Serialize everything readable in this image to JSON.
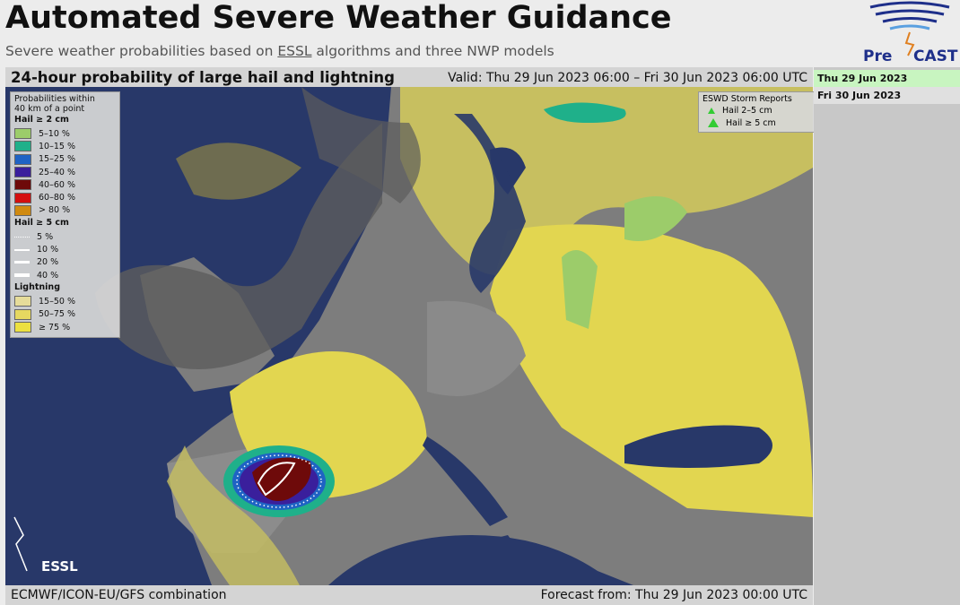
{
  "header": {
    "title": "Automated Severe Weather Guidance",
    "subtitle_before": "Severe weather probabilities based on ",
    "subtitle_link": "ESSL",
    "subtitle_after": " algorithms and three NWP models"
  },
  "logo": {
    "left": "Pre",
    "right": "CAST"
  },
  "map": {
    "title": "24-hour probability of large hail and lightning",
    "valid": "Valid: Thu 29 Jun 2023 06:00 – Fri 30 Jun 2023 06:00 UTC",
    "essl_logo": "ESSL",
    "footer_left": "ECMWF/ICON-EU/GFS combination",
    "footer_right": "Forecast from: Thu 29 Jun 2023 00:00 UTC"
  },
  "legend": {
    "title_lines": [
      "Probabilities within",
      "40 km of a point"
    ],
    "groups": [
      {
        "title": "Hail ≥ 2 cm",
        "items": [
          {
            "label": "5–10 %",
            "color": "#9ccc6a"
          },
          {
            "label": "10–15 %",
            "color": "#1fb08a"
          },
          {
            "label": "15–25 %",
            "color": "#1f63c4"
          },
          {
            "label": "25–40 %",
            "color": "#3a1f9c"
          },
          {
            "label": "40–60 %",
            "color": "#6e0a0a"
          },
          {
            "label": "60–80 %",
            "color": "#d40f0f"
          },
          {
            "label": "> 80 %",
            "color": "#d08a10"
          }
        ]
      },
      {
        "title": "Hail ≥ 5 cm",
        "items": [
          {
            "label": "5 %"
          },
          {
            "label": "10 %"
          },
          {
            "label": "20 %"
          },
          {
            "label": "40 %"
          }
        ]
      },
      {
        "title": "Lightning",
        "items": [
          {
            "label": "15–50 %",
            "color": "#e6dc9a"
          },
          {
            "label": "50–75 %",
            "color": "#e6d860"
          },
          {
            "label": "≥ 75 %",
            "color": "#ece040"
          }
        ]
      }
    ]
  },
  "reports": {
    "title": "ESWD Storm Reports",
    "items": [
      {
        "label": "Hail 2–5 cm"
      },
      {
        "label": "Hail ≥ 5 cm"
      }
    ]
  },
  "sidebar": {
    "dates": [
      "Thu 29 Jun 2023",
      "Fri 30 Jun 2023"
    ]
  }
}
